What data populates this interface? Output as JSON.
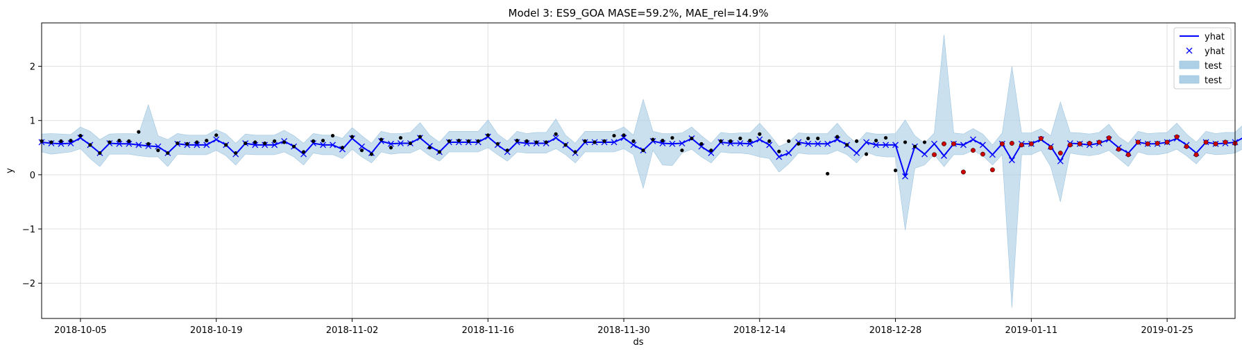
{
  "chart_data": {
    "type": "line",
    "title": "Model 3: ES9_GOA MASE=59.2%, MAE_rel=14.9%",
    "xlabel": "ds",
    "ylabel": "y",
    "x_start": "2018-10-01",
    "x_end": "2019-02-01",
    "xlim": [
      "2018-10-01",
      "2019-02-01"
    ],
    "ylim": [
      -2.65,
      2.8
    ],
    "grid": true,
    "legend_position": "top-right",
    "x_ticks": [
      "2018-10-05",
      "2018-10-19",
      "2018-11-02",
      "2018-11-16",
      "2018-11-30",
      "2018-12-14",
      "2018-12-28",
      "2019-01-11",
      "2019-01-25"
    ],
    "y_ticks": [
      -2,
      -1,
      0,
      1,
      2
    ],
    "y_tick_labels": [
      "−2",
      "−1",
      "0",
      "1",
      "2"
    ],
    "legend": [
      {
        "label": "yhat",
        "kind": "line",
        "color": "#0000ff"
      },
      {
        "label": "yhat",
        "kind": "x",
        "color": "#0000ff"
      },
      {
        "label": "test",
        "kind": "patch",
        "color": "#aed0e6"
      },
      {
        "label": "test",
        "kind": "patch",
        "color": "#aed0e6"
      }
    ],
    "colors": {
      "line": "#0000ff",
      "band": "#aed0e6",
      "actual": "#000000",
      "test_marker": "#cc0000"
    },
    "yhat": [
      0.6,
      0.58,
      0.57,
      0.58,
      0.68,
      0.55,
      0.4,
      0.58,
      0.57,
      0.57,
      0.55,
      0.53,
      0.52,
      0.4,
      0.57,
      0.55,
      0.55,
      0.55,
      0.65,
      0.55,
      0.38,
      0.58,
      0.55,
      0.55,
      0.55,
      0.62,
      0.52,
      0.38,
      0.58,
      0.55,
      0.55,
      0.47,
      0.67,
      0.52,
      0.4,
      0.62,
      0.57,
      0.58,
      0.58,
      0.68,
      0.53,
      0.42,
      0.6,
      0.6,
      0.6,
      0.6,
      0.7,
      0.55,
      0.42,
      0.6,
      0.58,
      0.58,
      0.58,
      0.68,
      0.55,
      0.4,
      0.6,
      0.6,
      0.6,
      0.6,
      0.68,
      0.55,
      0.45,
      0.62,
      0.58,
      0.57,
      0.58,
      0.67,
      0.52,
      0.4,
      0.6,
      0.58,
      0.58,
      0.57,
      0.65,
      0.55,
      0.33,
      0.4,
      0.6,
      0.57,
      0.57,
      0.57,
      0.65,
      0.55,
      0.4,
      0.6,
      0.55,
      0.55,
      0.55,
      -0.03,
      0.52,
      0.38,
      0.57,
      0.35,
      0.57,
      0.55,
      0.65,
      0.55,
      0.37,
      0.57,
      0.27,
      0.57,
      0.57,
      0.65,
      0.52,
      0.25,
      0.58,
      0.57,
      0.55,
      0.58,
      0.65,
      0.5,
      0.4,
      0.6,
      0.57,
      0.57,
      0.6,
      0.67,
      0.55,
      0.4,
      0.6,
      0.57,
      0.58,
      0.6,
      0.7,
      0.55,
      0.42,
      0.62,
      0.57
    ],
    "lower": [
      0.42,
      0.38,
      0.4,
      0.42,
      0.48,
      0.3,
      0.15,
      0.38,
      0.38,
      0.38,
      0.35,
      0.33,
      0.33,
      0.15,
      0.38,
      0.37,
      0.37,
      0.37,
      0.45,
      0.35,
      0.18,
      0.38,
      0.37,
      0.37,
      0.37,
      0.42,
      0.33,
      0.18,
      0.4,
      0.37,
      0.37,
      0.3,
      0.47,
      0.33,
      0.22,
      0.42,
      0.38,
      0.4,
      0.4,
      0.48,
      0.35,
      0.25,
      0.42,
      0.42,
      0.42,
      0.42,
      0.5,
      0.37,
      0.25,
      0.42,
      0.4,
      0.4,
      0.4,
      0.48,
      0.37,
      0.22,
      0.42,
      0.42,
      0.42,
      0.42,
      0.48,
      0.37,
      -0.25,
      0.45,
      0.18,
      0.17,
      0.4,
      0.47,
      0.33,
      0.22,
      0.42,
      0.4,
      0.4,
      0.38,
      0.33,
      0.3,
      0.05,
      0.2,
      0.4,
      0.38,
      0.38,
      0.38,
      0.45,
      0.37,
      0.22,
      0.42,
      0.35,
      0.33,
      0.33,
      -1.02,
      0.12,
      0.18,
      0.37,
      0.15,
      0.37,
      0.37,
      0.45,
      0.35,
      0.18,
      0.37,
      -2.45,
      0.37,
      0.37,
      0.45,
      0.15,
      -0.5,
      0.4,
      0.37,
      0.35,
      0.38,
      0.45,
      0.3,
      0.15,
      0.42,
      0.37,
      0.37,
      0.4,
      0.47,
      0.35,
      0.2,
      0.4,
      0.37,
      0.38,
      0.4,
      0.5,
      0.35,
      0.22,
      0.42,
      0.37
    ],
    "upper": [
      0.75,
      0.76,
      0.75,
      0.74,
      0.88,
      0.8,
      0.65,
      0.75,
      0.76,
      0.76,
      0.75,
      1.29,
      0.72,
      0.65,
      0.76,
      0.73,
      0.73,
      0.73,
      0.83,
      0.75,
      0.58,
      0.75,
      0.73,
      0.73,
      0.73,
      0.82,
      0.72,
      0.58,
      0.76,
      0.73,
      0.73,
      0.67,
      0.87,
      0.72,
      0.58,
      0.8,
      0.76,
      0.76,
      0.78,
      0.96,
      0.73,
      0.6,
      0.8,
      0.8,
      0.8,
      0.8,
      1.01,
      0.75,
      0.62,
      0.8,
      0.76,
      0.78,
      0.78,
      1.03,
      0.73,
      0.58,
      0.8,
      0.8,
      0.8,
      0.8,
      0.88,
      0.73,
      1.39,
      0.8,
      0.76,
      0.76,
      0.77,
      0.88,
      0.72,
      0.58,
      0.78,
      0.76,
      0.77,
      0.77,
      0.95,
      0.75,
      0.52,
      0.6,
      0.77,
      0.76,
      0.76,
      0.76,
      0.95,
      0.73,
      0.58,
      0.78,
      0.75,
      0.75,
      0.76,
      1.01,
      0.72,
      0.58,
      0.77,
      2.58,
      0.77,
      0.75,
      0.85,
      0.75,
      0.55,
      0.77,
      2.0,
      0.77,
      0.77,
      0.85,
      0.72,
      1.34,
      0.78,
      0.77,
      0.75,
      0.78,
      0.93,
      0.7,
      0.58,
      0.8,
      0.76,
      0.77,
      0.78,
      0.95,
      0.75,
      0.6,
      0.8,
      0.76,
      0.78,
      0.78,
      0.95,
      0.75,
      0.6,
      0.82,
      0.93
    ],
    "actual_points": [
      {
        "x": "2018-10-01",
        "y": 0.62
      },
      {
        "x": "2018-10-02",
        "y": 0.6
      },
      {
        "x": "2018-10-03",
        "y": 0.62
      },
      {
        "x": "2018-10-04",
        "y": 0.63
      },
      {
        "x": "2018-10-05",
        "y": 0.72
      },
      {
        "x": "2018-10-06",
        "y": 0.55
      },
      {
        "x": "2018-10-07",
        "y": 0.4
      },
      {
        "x": "2018-10-08",
        "y": 0.6
      },
      {
        "x": "2018-10-09",
        "y": 0.63
      },
      {
        "x": "2018-10-10",
        "y": 0.62
      },
      {
        "x": "2018-10-11",
        "y": 0.79
      },
      {
        "x": "2018-10-12",
        "y": 0.57
      },
      {
        "x": "2018-10-13",
        "y": 0.45
      },
      {
        "x": "2018-10-14",
        "y": 0.4
      },
      {
        "x": "2018-10-15",
        "y": 0.58
      },
      {
        "x": "2018-10-16",
        "y": 0.57
      },
      {
        "x": "2018-10-17",
        "y": 0.6
      },
      {
        "x": "2018-10-18",
        "y": 0.63
      },
      {
        "x": "2018-10-19",
        "y": 0.73
      },
      {
        "x": "2018-10-20",
        "y": 0.55
      },
      {
        "x": "2018-10-21",
        "y": 0.4
      },
      {
        "x": "2018-10-22",
        "y": 0.58
      },
      {
        "x": "2018-10-23",
        "y": 0.6
      },
      {
        "x": "2018-10-24",
        "y": 0.58
      },
      {
        "x": "2018-10-25",
        "y": 0.62
      },
      {
        "x": "2018-10-26",
        "y": 0.6
      },
      {
        "x": "2018-10-27",
        "y": 0.52
      },
      {
        "x": "2018-10-28",
        "y": 0.42
      },
      {
        "x": "2018-10-29",
        "y": 0.62
      },
      {
        "x": "2018-10-30",
        "y": 0.63
      },
      {
        "x": "2018-10-31",
        "y": 0.72
      },
      {
        "x": "2018-11-01",
        "y": 0.5
      },
      {
        "x": "2018-11-02",
        "y": 0.7
      },
      {
        "x": "2018-11-03",
        "y": 0.45
      },
      {
        "x": "2018-11-04",
        "y": 0.38
      },
      {
        "x": "2018-11-05",
        "y": 0.65
      },
      {
        "x": "2018-11-06",
        "y": 0.5
      },
      {
        "x": "2018-11-07",
        "y": 0.68
      },
      {
        "x": "2018-11-08",
        "y": 0.58
      },
      {
        "x": "2018-11-09",
        "y": 0.7
      },
      {
        "x": "2018-11-10",
        "y": 0.5
      },
      {
        "x": "2018-11-11",
        "y": 0.42
      },
      {
        "x": "2018-11-12",
        "y": 0.62
      },
      {
        "x": "2018-11-13",
        "y": 0.63
      },
      {
        "x": "2018-11-14",
        "y": 0.62
      },
      {
        "x": "2018-11-15",
        "y": 0.62
      },
      {
        "x": "2018-11-16",
        "y": 0.73
      },
      {
        "x": "2018-11-17",
        "y": 0.57
      },
      {
        "x": "2018-11-18",
        "y": 0.45
      },
      {
        "x": "2018-11-19",
        "y": 0.63
      },
      {
        "x": "2018-11-20",
        "y": 0.62
      },
      {
        "x": "2018-11-21",
        "y": 0.6
      },
      {
        "x": "2018-11-22",
        "y": 0.6
      },
      {
        "x": "2018-11-23",
        "y": 0.75
      },
      {
        "x": "2018-11-24",
        "y": 0.55
      },
      {
        "x": "2018-11-25",
        "y": 0.42
      },
      {
        "x": "2018-11-26",
        "y": 0.62
      },
      {
        "x": "2018-11-27",
        "y": 0.6
      },
      {
        "x": "2018-11-28",
        "y": 0.62
      },
      {
        "x": "2018-11-29",
        "y": 0.72
      },
      {
        "x": "2018-11-30",
        "y": 0.73
      },
      {
        "x": "2018-12-01",
        "y": 0.62
      },
      {
        "x": "2018-12-02",
        "y": 0.45
      },
      {
        "x": "2018-12-03",
        "y": 0.65
      },
      {
        "x": "2018-12-04",
        "y": 0.63
      },
      {
        "x": "2018-12-05",
        "y": 0.68
      },
      {
        "x": "2018-12-06",
        "y": 0.45
      },
      {
        "x": "2018-12-07",
        "y": 0.67
      },
      {
        "x": "2018-12-08",
        "y": 0.57
      },
      {
        "x": "2018-12-09",
        "y": 0.45
      },
      {
        "x": "2018-12-10",
        "y": 0.62
      },
      {
        "x": "2018-12-11",
        "y": 0.62
      },
      {
        "x": "2018-12-12",
        "y": 0.67
      },
      {
        "x": "2018-12-13",
        "y": 0.63
      },
      {
        "x": "2018-12-14",
        "y": 0.75
      },
      {
        "x": "2018-12-15",
        "y": 0.62
      },
      {
        "x": "2018-12-16",
        "y": 0.43
      },
      {
        "x": "2018-12-17",
        "y": 0.62
      },
      {
        "x": "2018-12-18",
        "y": 0.57
      },
      {
        "x": "2018-12-19",
        "y": 0.67
      },
      {
        "x": "2018-12-20",
        "y": 0.67
      },
      {
        "x": "2018-12-21",
        "y": 0.02
      },
      {
        "x": "2018-12-22",
        "y": 0.7
      },
      {
        "x": "2018-12-23",
        "y": 0.55
      },
      {
        "x": "2018-12-24",
        "y": 0.62
      },
      {
        "x": "2018-12-25",
        "y": 0.38
      },
      {
        "x": "2018-12-26",
        "y": 0.63
      },
      {
        "x": "2018-12-27",
        "y": 0.68
      },
      {
        "x": "2018-12-28",
        "y": 0.08
      },
      {
        "x": "2018-12-29",
        "y": 0.6
      },
      {
        "x": "2018-12-30",
        "y": 0.52
      },
      {
        "x": "2018-12-31",
        "y": 0.6
      }
    ],
    "test_points": [
      {
        "x": "2019-01-01",
        "y": 0.37
      },
      {
        "x": "2019-01-02",
        "y": 0.57
      },
      {
        "x": "2019-01-03",
        "y": 0.57
      },
      {
        "x": "2019-01-04",
        "y": 0.05
      },
      {
        "x": "2019-01-05",
        "y": 0.45
      },
      {
        "x": "2019-01-06",
        "y": 0.38
      },
      {
        "x": "2019-01-07",
        "y": 0.09
      },
      {
        "x": "2019-01-08",
        "y": 0.57
      },
      {
        "x": "2019-01-09",
        "y": 0.58
      },
      {
        "x": "2019-01-10",
        "y": 0.55
      },
      {
        "x": "2019-01-11",
        "y": 0.57
      },
      {
        "x": "2019-01-12",
        "y": 0.67
      },
      {
        "x": "2019-01-13",
        "y": 0.5
      },
      {
        "x": "2019-01-14",
        "y": 0.4
      },
      {
        "x": "2019-01-15",
        "y": 0.55
      },
      {
        "x": "2019-01-16",
        "y": 0.57
      },
      {
        "x": "2019-01-17",
        "y": 0.58
      },
      {
        "x": "2019-01-18",
        "y": 0.6
      },
      {
        "x": "2019-01-19",
        "y": 0.68
      },
      {
        "x": "2019-01-20",
        "y": 0.47
      },
      {
        "x": "2019-01-21",
        "y": 0.37
      },
      {
        "x": "2019-01-22",
        "y": 0.6
      },
      {
        "x": "2019-01-23",
        "y": 0.57
      },
      {
        "x": "2019-01-24",
        "y": 0.58
      },
      {
        "x": "2019-01-25",
        "y": 0.6
      },
      {
        "x": "2019-01-26",
        "y": 0.7
      },
      {
        "x": "2019-01-27",
        "y": 0.52
      },
      {
        "x": "2019-01-28",
        "y": 0.37
      },
      {
        "x": "2019-01-29",
        "y": 0.6
      },
      {
        "x": "2019-01-30",
        "y": 0.57
      },
      {
        "x": "2019-01-31",
        "y": 0.6
      },
      {
        "x": "2019-02-01",
        "y": 0.58
      }
    ]
  }
}
